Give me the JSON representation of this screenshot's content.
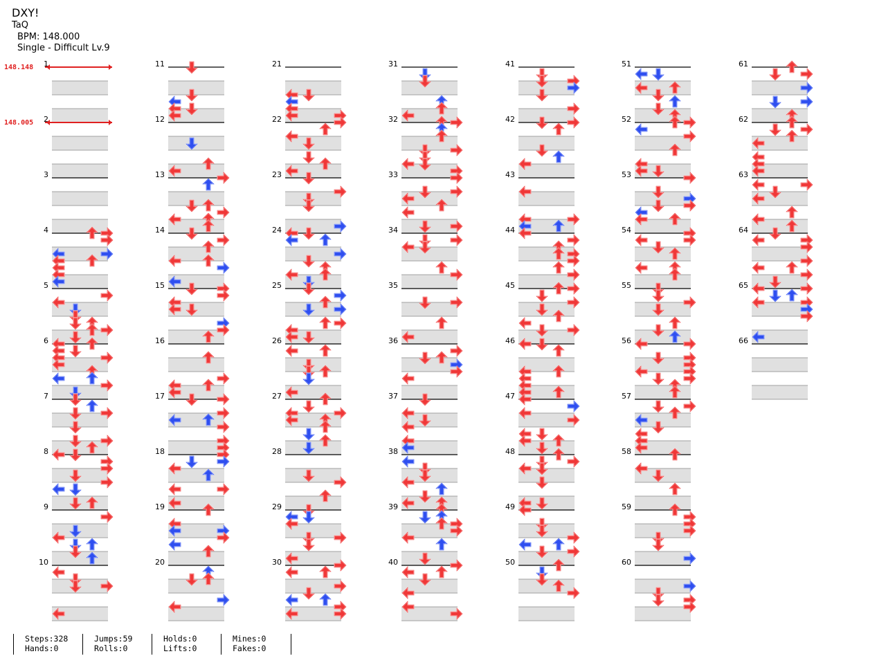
{
  "song": {
    "title": "DXY!",
    "artist": "TaQ",
    "bpm_label": "BPM: 148.000",
    "chart_label": "Single - Difficult Lv.9"
  },
  "bpm_changes": [
    {
      "measure": 1,
      "label": "148.148"
    },
    {
      "measure": 2,
      "label": "148.005"
    }
  ],
  "colors": {
    "quarter": "#f03838",
    "eighth": "#2f4ff0",
    "band": "#e0e0e0",
    "bpm": "#e02020"
  },
  "stats": {
    "steps": "Steps:328",
    "hands": "Hands:0",
    "jumps": "Jumps:59",
    "rolls": "Rolls:0",
    "holds": "Holds:0",
    "lifts": "Lifts:0",
    "mines": "Mines:0",
    "fakes": "Fakes:0"
  },
  "measure_count": 66,
  "arrow_directions": [
    "left",
    "down",
    "up",
    "right"
  ]
}
